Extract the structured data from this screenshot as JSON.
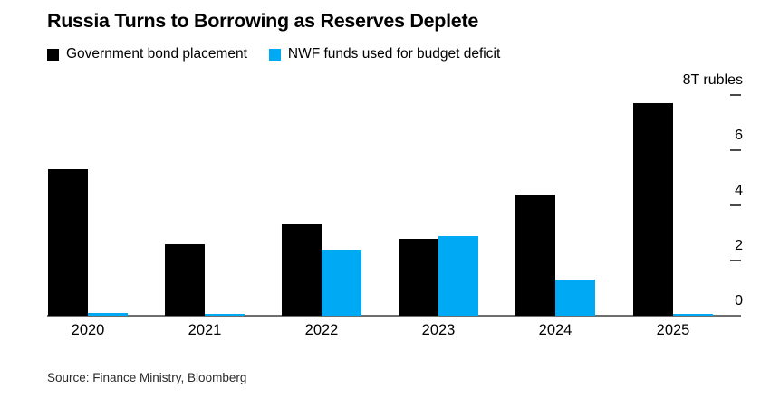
{
  "header": {
    "title": "Russia Turns to Borrowing as Reserves Deplete"
  },
  "legend": {
    "items": [
      {
        "label": "Government bond placement",
        "color": "#000000"
      },
      {
        "label": "NWF funds used for budget deficit",
        "color": "#00a9f4"
      }
    ]
  },
  "axis": {
    "unit_label": "8T rubles",
    "ticks": [
      {
        "value": 8,
        "label": "8T rubles"
      },
      {
        "value": 6,
        "label": "6"
      },
      {
        "value": 4,
        "label": "4"
      },
      {
        "value": 2,
        "label": "2"
      },
      {
        "value": 0,
        "label": "0"
      }
    ]
  },
  "source": "Source: Finance Ministry, Bloomberg",
  "chart_data": {
    "type": "bar",
    "title": "Russia Turns to Borrowing as Reserves Deplete",
    "categories": [
      "2020",
      "2021",
      "2022",
      "2023",
      "2024",
      "2025"
    ],
    "series": [
      {
        "name": "Government bond placement",
        "color": "#000000",
        "values": [
          5.3,
          2.6,
          3.3,
          2.8,
          4.4,
          7.7
        ]
      },
      {
        "name": "NWF funds used for budget deficit",
        "color": "#00a9f4",
        "values": [
          0.1,
          0.06,
          2.4,
          2.9,
          1.3,
          0.06
        ]
      }
    ],
    "xlabel": "",
    "ylabel": "T rubles",
    "ylim": [
      0,
      8
    ],
    "yticks": [
      0,
      2,
      4,
      6,
      8
    ],
    "grid": false,
    "legend_position": "top",
    "source": "Source: Finance Ministry, Bloomberg"
  }
}
